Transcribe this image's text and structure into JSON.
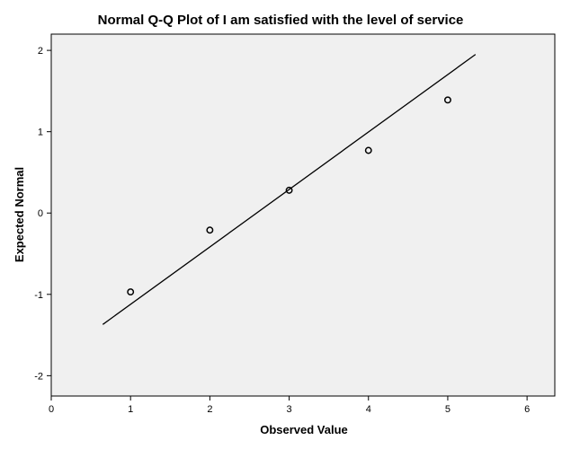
{
  "chart_data": {
    "type": "scatter",
    "title": "Normal Q-Q Plot of I am satisfied with the level of service",
    "xlabel": "Observed Value",
    "ylabel": "Expected Normal",
    "xlim": [
      0,
      6.35
    ],
    "ylim": [
      -2.25,
      2.2
    ],
    "xticks": [
      0,
      1,
      2,
      3,
      4,
      5,
      6
    ],
    "yticks": [
      -2,
      -1,
      0,
      1,
      2
    ],
    "grid": false,
    "plot_background": "#f0f0f0",
    "points": [
      {
        "x": 1,
        "y": -0.97
      },
      {
        "x": 2,
        "y": -0.21
      },
      {
        "x": 3,
        "y": 0.28
      },
      {
        "x": 4,
        "y": 0.77
      },
      {
        "x": 5,
        "y": 1.39
      }
    ],
    "reference_line": {
      "x": [
        0.65,
        5.35
      ],
      "y": [
        -1.37,
        1.95
      ]
    }
  }
}
